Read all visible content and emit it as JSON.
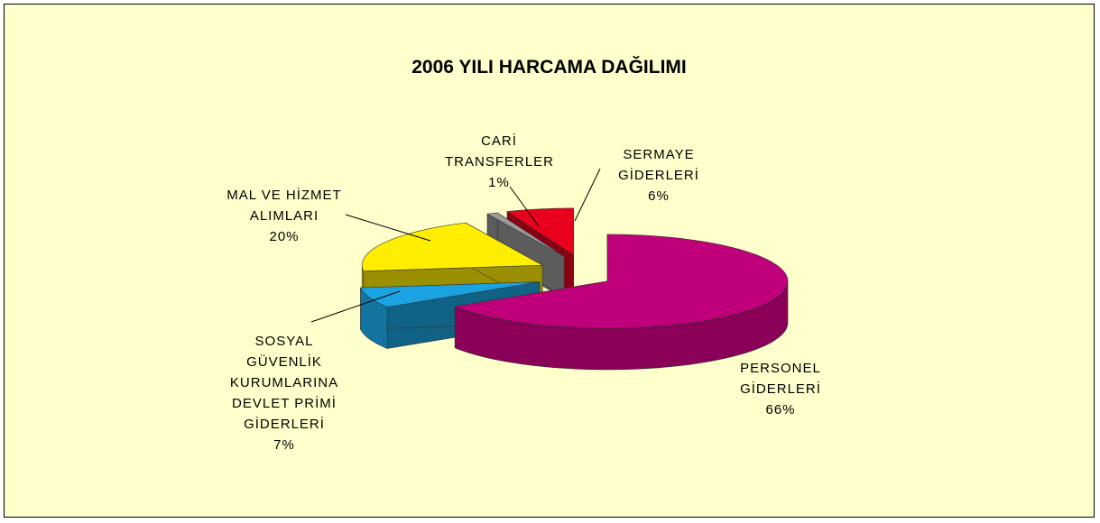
{
  "chart_data": {
    "type": "pie",
    "title": "2006 YILI HARCAMA DAĞILIMI",
    "categories": [
      "PERSONEL GİDERLERİ",
      "SOSYAL GÜVENLİK KURUMLARINA DEVLET PRİMİ GİDERLERİ",
      "MAL VE HİZMET ALIMLARI",
      "CARİ TRANSFERLER",
      "SERMAYE GİDERLERİ"
    ],
    "values": [
      66,
      7,
      20,
      1,
      6
    ],
    "value_labels": [
      "66%",
      "7%",
      "20%",
      "1%",
      "6%"
    ],
    "colors": [
      "#c0007a",
      "#1aa3e0",
      "#ffee00",
      "#9a9a9a",
      "#e8001c"
    ]
  }
}
